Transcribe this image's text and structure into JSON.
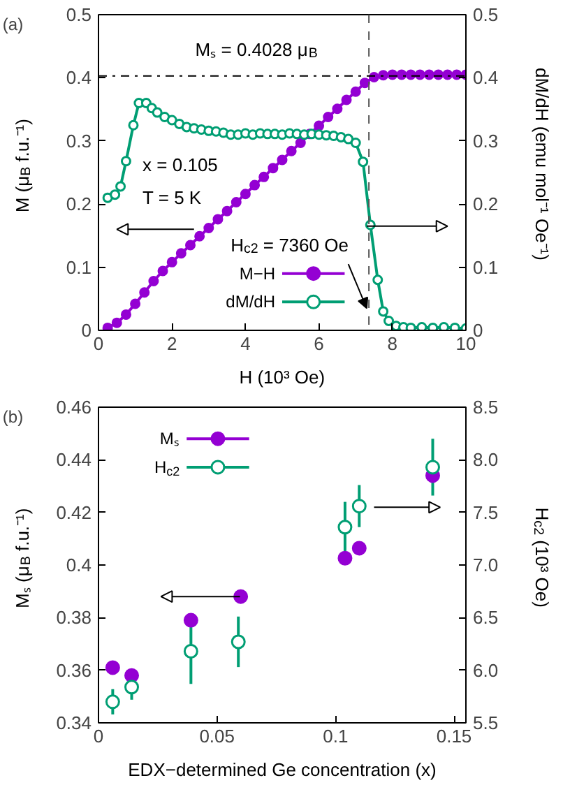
{
  "chart_data": [
    {
      "type": "line",
      "title": "(a)",
      "xlabel": "H (10³ Oe)",
      "ylabel": "M (μ$_{B}$ f.u.⁻¹)",
      "y2label": "dM/dH (emu mol⁻¹ Oe⁻¹)",
      "xlim": [
        0,
        10
      ],
      "xticks": [
        0,
        2,
        4,
        6,
        8,
        10
      ],
      "ylim": [
        0,
        0.5
      ],
      "yticks": [
        0,
        0.1,
        0.2,
        0.3,
        0.4,
        0.5
      ],
      "y2lim": [
        0,
        0.5
      ],
      "y2ticks": [
        0,
        0.1,
        0.2,
        0.3,
        0.4,
        0.5
      ],
      "grid": false,
      "legend": "bottom",
      "marker": "circle",
      "line_style": "solid",
      "series": [
        {
          "name": "M−H",
          "color": "#9400d3",
          "x": [
            0.25,
            0.5,
            0.75,
            1.0,
            1.25,
            1.5,
            1.75,
            2.0,
            2.25,
            2.5,
            2.75,
            3.0,
            3.25,
            3.5,
            3.75,
            4.0,
            4.25,
            4.5,
            4.75,
            5.0,
            5.25,
            5.5,
            5.75,
            6.0,
            6.25,
            6.5,
            6.75,
            7.0,
            7.25,
            7.5,
            7.75,
            8.0,
            8.25,
            8.5,
            8.75,
            9.0,
            9.25,
            9.5,
            9.75,
            10.0
          ],
          "values": [
            0.004,
            0.012,
            0.025,
            0.042,
            0.06,
            0.078,
            0.094,
            0.108,
            0.122,
            0.135,
            0.149,
            0.162,
            0.176,
            0.189,
            0.203,
            0.216,
            0.23,
            0.243,
            0.257,
            0.27,
            0.284,
            0.297,
            0.311,
            0.324,
            0.338,
            0.351,
            0.365,
            0.378,
            0.392,
            0.401,
            0.404,
            0.405,
            0.405,
            0.405,
            0.405,
            0.405,
            0.405,
            0.405,
            0.405,
            0.405
          ]
        },
        {
          "name": "dM/dH",
          "color": "#009e73",
          "axis": "y2",
          "x": [
            0.25,
            0.45,
            0.6,
            0.75,
            0.95,
            1.1,
            1.3,
            1.45,
            1.6,
            1.8,
            2.0,
            2.2,
            2.4,
            2.6,
            2.8,
            3.0,
            3.2,
            3.4,
            3.6,
            3.8,
            4.0,
            4.2,
            4.4,
            4.6,
            4.8,
            5.0,
            5.2,
            5.4,
            5.6,
            5.8,
            6.0,
            6.2,
            6.4,
            6.6,
            6.8,
            7.0,
            7.2,
            7.4,
            7.6,
            7.75,
            7.9,
            8.1,
            8.3,
            8.5,
            8.8,
            9.1,
            9.4,
            9.7,
            10.0
          ],
          "values": [
            0.21,
            0.215,
            0.228,
            0.268,
            0.325,
            0.36,
            0.36,
            0.352,
            0.345,
            0.338,
            0.333,
            0.327,
            0.322,
            0.32,
            0.318,
            0.316,
            0.315,
            0.313,
            0.31,
            0.31,
            0.312,
            0.31,
            0.312,
            0.311,
            0.311,
            0.31,
            0.312,
            0.311,
            0.31,
            0.311,
            0.31,
            0.309,
            0.308,
            0.306,
            0.303,
            0.297,
            0.267,
            0.167,
            0.08,
            0.03,
            0.015,
            0.007,
            0.005,
            0.004,
            0.005,
            0.004,
            0.005,
            0.004,
            0.003
          ]
        }
      ],
      "ref_lines": [
        {
          "axis": "y",
          "value": 0.4028,
          "line_style": "dashdot",
          "color": "#000000"
        },
        {
          "axis": "x",
          "value": 7.36,
          "line_style": "dashed",
          "color": "#555555"
        }
      ],
      "annotations": [
        "Mₛ = 0.4028 μ$_{B}$",
        "x = 0.105",
        "T = 5 K",
        {
          "text": "H$_{c2}$ = 7360 Oe",
          "x": 7.3,
          "y": 0.035
        }
      ]
    },
    {
      "type": "scatter",
      "title": "(b)",
      "xlabel": "EDX−determined Ge concentration (x)",
      "ylabel": "Mₛ (μ$_{B}$ f.u.⁻¹)",
      "y2label": "H$_{c2}$ (10³ Oe)",
      "xlim": [
        0,
        0.155
      ],
      "xticks": [
        0,
        0.05,
        0.1,
        0.15
      ],
      "ylim": [
        0.34,
        0.46
      ],
      "yticks": [
        0.34,
        0.36,
        0.38,
        0.4,
        0.42,
        0.44,
        0.46
      ],
      "y2lim": [
        5.5,
        8.5
      ],
      "y2ticks": [
        5.5,
        {
          "value": 6,
          "label": "6.0"
        },
        6.5,
        {
          "value": 7,
          "label": "7.0"
        },
        7.5,
        {
          "value": 8,
          "label": "8.0"
        },
        8.5
      ],
      "grid": false,
      "legend": "top left",
      "marker": "circle",
      "series": [
        {
          "name": "Mₛ",
          "color": "#9400d3",
          "x": [
            0.006,
            0.014,
            0.039,
            0.06,
            0.104,
            0.11,
            0.141
          ],
          "values": [
            0.361,
            0.358,
            0.379,
            0.388,
            0.4026,
            0.4064,
            0.434
          ]
        },
        {
          "name": "H$_{c2}$",
          "color": "#009e73",
          "axis": "y2",
          "x": [
            0.006,
            0.014,
            0.039,
            0.059,
            0.104,
            0.11,
            0.141
          ],
          "values": [
            5.7,
            5.84,
            6.18,
            6.27,
            7.36,
            7.56,
            7.93
          ],
          "errors": [
            0.12,
            0.12,
            0.31,
            0.24,
            0.24,
            0.2,
            0.27
          ]
        }
      ]
    }
  ]
}
